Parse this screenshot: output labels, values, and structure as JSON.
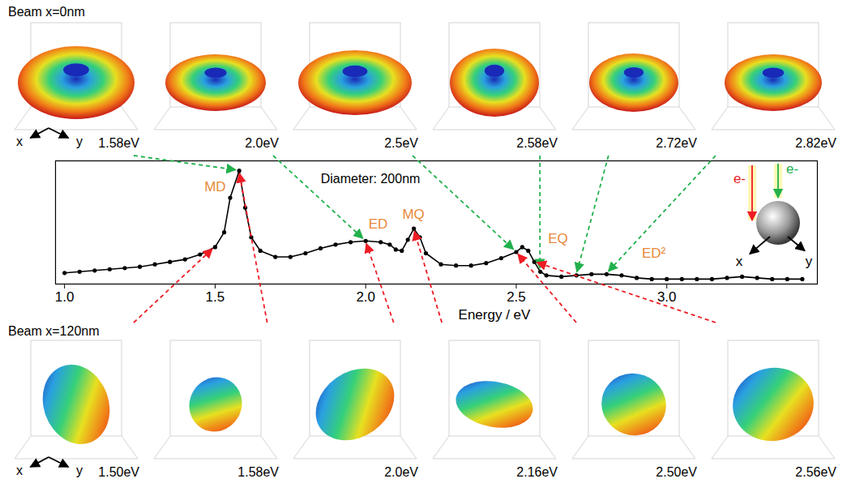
{
  "chart_data": {
    "type": "line",
    "x_label": "Energy / eV",
    "xlim": [
      0.97,
      3.5
    ],
    "xticks": [
      {
        "value": 1,
        "label": "1.0"
      },
      1.5,
      {
        "value": 2,
        "label": "2.0"
      },
      2.5,
      {
        "value": 3,
        "label": "3.0"
      }
    ],
    "ylim": [
      0,
      1
    ],
    "tick_labels": "x",
    "color": "#000000",
    "marker": "circle",
    "line_style": "solid",
    "x": [
      1.0,
      1.05,
      1.1,
      1.15,
      1.2,
      1.25,
      1.3,
      1.35,
      1.4,
      1.45,
      1.5,
      1.53,
      1.55,
      1.58,
      1.6,
      1.62,
      1.65,
      1.7,
      1.75,
      1.8,
      1.85,
      1.9,
      1.95,
      2.0,
      2.05,
      2.08,
      2.1,
      2.12,
      2.14,
      2.16,
      2.18,
      2.2,
      2.25,
      2.3,
      2.35,
      2.4,
      2.45,
      2.5,
      2.52,
      2.54,
      2.56,
      2.58,
      2.6,
      2.65,
      2.7,
      2.75,
      2.8,
      2.85,
      2.9,
      2.95,
      3.0,
      3.05,
      3.1,
      3.15,
      3.2,
      3.25,
      3.3,
      3.35,
      3.4,
      3.45
    ],
    "values": [
      0.09,
      0.1,
      0.11,
      0.12,
      0.13,
      0.14,
      0.16,
      0.18,
      0.2,
      0.24,
      0.3,
      0.42,
      0.7,
      0.92,
      0.62,
      0.38,
      0.27,
      0.22,
      0.22,
      0.25,
      0.29,
      0.32,
      0.34,
      0.35,
      0.34,
      0.32,
      0.28,
      0.27,
      0.36,
      0.45,
      0.38,
      0.25,
      0.16,
      0.15,
      0.15,
      0.17,
      0.21,
      0.26,
      0.3,
      0.27,
      0.18,
      0.1,
      0.07,
      0.06,
      0.07,
      0.08,
      0.08,
      0.07,
      0.05,
      0.04,
      0.04,
      0.04,
      0.04,
      0.04,
      0.05,
      0.06,
      0.05,
      0.04,
      0.04,
      0.04
    ],
    "peaks": {
      "color": "#e8893c",
      "items": [
        {
          "label": "MD",
          "x": 1.58
        },
        {
          "label": "ED",
          "x": 2.0
        },
        {
          "label": "MQ",
          "x": 2.16
        },
        {
          "label": "EQ",
          "x": 2.52
        },
        {
          "label": "ED²",
          "x": 2.82
        }
      ]
    },
    "annotation": "Diameter: 200nm",
    "axis_names": [
      "x",
      "y"
    ],
    "inset": {
      "beam_labels": [
        "e-",
        "e-"
      ]
    },
    "panels": {
      "top": {
        "title": "Beam x=0nm",
        "color": "#22b14c",
        "energies": [
          {
            "value": 1.58,
            "label": "1.58eV"
          },
          {
            "value": 2.0,
            "label": "2.0eV"
          },
          {
            "value": 2.5,
            "label": "2.5eV"
          },
          {
            "value": 2.58,
            "label": "2.58eV"
          },
          {
            "value": 2.72,
            "label": "2.72eV"
          },
          {
            "value": 2.82,
            "label": "2.82eV"
          }
        ]
      },
      "bottom": {
        "title": "Beam x=120nm",
        "color": "#ed1c24",
        "energies": [
          {
            "value": 1.5,
            "label": "1.50eV"
          },
          {
            "value": 1.58,
            "label": "1.58eV"
          },
          {
            "value": 2.0,
            "label": "2.0eV"
          },
          {
            "value": 2.16,
            "label": "2.16eV"
          },
          {
            "value": 2.5,
            "label": "2.50eV"
          },
          {
            "value": 2.56,
            "label": "2.56eV"
          }
        ]
      }
    }
  }
}
